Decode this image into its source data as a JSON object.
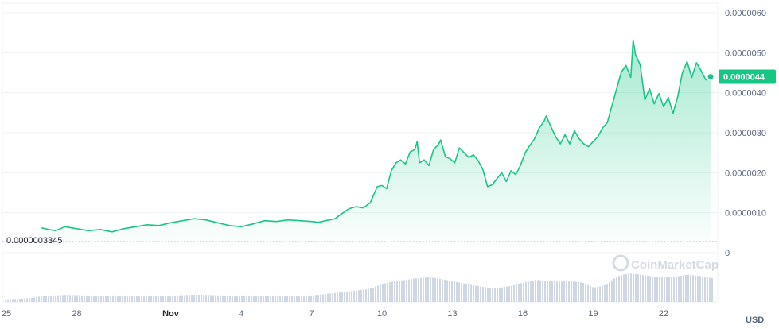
{
  "chart_data": {
    "type": "area",
    "currency_label": "USD",
    "watermark": "CoinMarketCap",
    "colors": {
      "line": "#16c784",
      "fill_top": "#16c784",
      "grid": "#eff2f5",
      "volume": "#cfd6e4",
      "tag": "#16c784"
    },
    "y_ticks": [
      "0",
      "0.0000010",
      "0.0000020",
      "0.0000030",
      "0.0000040",
      "0.0000050",
      "0.0000060"
    ],
    "ylim": [
      0,
      6e-06
    ],
    "x_ticks": [
      {
        "label": "25",
        "day": 25,
        "bold": false
      },
      {
        "label": "28",
        "day": 28,
        "bold": false
      },
      {
        "label": "Nov",
        "day": 32,
        "bold": true
      },
      {
        "label": "4",
        "day": 35,
        "bold": false
      },
      {
        "label": "7",
        "day": 38,
        "bold": false
      },
      {
        "label": "10",
        "day": 41,
        "bold": false
      },
      {
        "label": "13",
        "day": 44,
        "bold": false
      },
      {
        "label": "16",
        "day": 47,
        "bold": false
      },
      {
        "label": "19",
        "day": 50,
        "bold": false
      },
      {
        "label": "22",
        "day": 53,
        "bold": false
      }
    ],
    "xlim": [
      25,
      55
    ],
    "baseline_value": 3.345e-07,
    "baseline_label": "0.0000003345",
    "current_value": 4.4e-06,
    "current_label": "0.0000044",
    "price_series": [
      [
        26.5,
        6.2e-07
      ],
      [
        26.8,
        5.8e-07
      ],
      [
        27.1,
        5.5e-07
      ],
      [
        27.5,
        6.5e-07
      ],
      [
        28.0,
        6e-07
      ],
      [
        28.5,
        5.5e-07
      ],
      [
        29.0,
        5.8e-07
      ],
      [
        29.5,
        5.2e-07
      ],
      [
        30.0,
        6e-07
      ],
      [
        30.5,
        6.5e-07
      ],
      [
        31.0,
        7e-07
      ],
      [
        31.5,
        6.8e-07
      ],
      [
        32.0,
        7.5e-07
      ],
      [
        32.5,
        8e-07
      ],
      [
        33.0,
        8.5e-07
      ],
      [
        33.5,
        8.2e-07
      ],
      [
        34.0,
        7.5e-07
      ],
      [
        34.5,
        6.8e-07
      ],
      [
        35.0,
        6.5e-07
      ],
      [
        35.5,
        7.2e-07
      ],
      [
        36.0,
        8e-07
      ],
      [
        36.5,
        7.8e-07
      ],
      [
        37.0,
        8.2e-07
      ],
      [
        37.5,
        8e-07
      ],
      [
        38.0,
        7.8e-07
      ],
      [
        38.3,
        7.6e-07
      ],
      [
        38.6,
        8e-07
      ],
      [
        39.0,
        8.5e-07
      ],
      [
        39.3,
        9.8e-07
      ],
      [
        39.6,
        1.1e-06
      ],
      [
        39.9,
        1.15e-06
      ],
      [
        40.2,
        1.12e-06
      ],
      [
        40.5,
        1.25e-06
      ],
      [
        40.8,
        1.65e-06
      ],
      [
        41.0,
        1.68e-06
      ],
      [
        41.2,
        1.6e-06
      ],
      [
        41.4,
        2.05e-06
      ],
      [
        41.6,
        2.25e-06
      ],
      [
        41.8,
        2.32e-06
      ],
      [
        42.0,
        2.22e-06
      ],
      [
        42.2,
        2.52e-06
      ],
      [
        42.4,
        2.58e-06
      ],
      [
        42.5,
        2.78e-06
      ],
      [
        42.6,
        2.25e-06
      ],
      [
        42.8,
        2.32e-06
      ],
      [
        43.0,
        2.18e-06
      ],
      [
        43.2,
        2.58e-06
      ],
      [
        43.4,
        2.7e-06
      ],
      [
        43.5,
        2.82e-06
      ],
      [
        43.7,
        2.4e-06
      ],
      [
        43.9,
        2.35e-06
      ],
      [
        44.1,
        2.25e-06
      ],
      [
        44.3,
        2.62e-06
      ],
      [
        44.5,
        2.5e-06
      ],
      [
        44.7,
        2.38e-06
      ],
      [
        44.9,
        2.45e-06
      ],
      [
        45.1,
        2.3e-06
      ],
      [
        45.3,
        2.08e-06
      ],
      [
        45.5,
        1.65e-06
      ],
      [
        45.7,
        1.7e-06
      ],
      [
        45.9,
        1.85e-06
      ],
      [
        46.1,
        2e-06
      ],
      [
        46.3,
        1.78e-06
      ],
      [
        46.5,
        2.05e-06
      ],
      [
        46.7,
        1.95e-06
      ],
      [
        46.9,
        2.18e-06
      ],
      [
        47.1,
        2.5e-06
      ],
      [
        47.3,
        2.68e-06
      ],
      [
        47.5,
        2.85e-06
      ],
      [
        47.7,
        3.12e-06
      ],
      [
        47.9,
        3.28e-06
      ],
      [
        48.0,
        3.42e-06
      ],
      [
        48.2,
        3.15e-06
      ],
      [
        48.4,
        2.9e-06
      ],
      [
        48.6,
        2.72e-06
      ],
      [
        48.8,
        2.95e-06
      ],
      [
        49.0,
        2.72e-06
      ],
      [
        49.2,
        3.05e-06
      ],
      [
        49.4,
        2.85e-06
      ],
      [
        49.6,
        2.72e-06
      ],
      [
        49.8,
        2.65e-06
      ],
      [
        50.0,
        2.78e-06
      ],
      [
        50.2,
        2.9e-06
      ],
      [
        50.4,
        3.12e-06
      ],
      [
        50.6,
        3.25e-06
      ],
      [
        50.8,
        3.68e-06
      ],
      [
        51.0,
        4.1e-06
      ],
      [
        51.2,
        4.52e-06
      ],
      [
        51.4,
        4.68e-06
      ],
      [
        51.6,
        4.38e-06
      ],
      [
        51.7,
        5.32e-06
      ],
      [
        51.8,
        4.95e-06
      ],
      [
        52.0,
        4.7e-06
      ],
      [
        52.2,
        3.82e-06
      ],
      [
        52.4,
        4.1e-06
      ],
      [
        52.6,
        3.72e-06
      ],
      [
        52.8,
        3.98e-06
      ],
      [
        53.0,
        3.65e-06
      ],
      [
        53.2,
        3.88e-06
      ],
      [
        53.4,
        3.48e-06
      ],
      [
        53.6,
        3.9e-06
      ],
      [
        53.8,
        4.5e-06
      ],
      [
        54.0,
        4.78e-06
      ],
      [
        54.2,
        4.38e-06
      ],
      [
        54.4,
        4.75e-06
      ],
      [
        54.6,
        4.55e-06
      ],
      [
        54.8,
        4.32e-06
      ],
      [
        55.0,
        4.4e-06
      ]
    ],
    "volume_series": [
      [
        25.0,
        0.1
      ],
      [
        25.5,
        0.12
      ],
      [
        26.0,
        0.15
      ],
      [
        26.5,
        0.22
      ],
      [
        27.0,
        0.25
      ],
      [
        27.5,
        0.27
      ],
      [
        28.0,
        0.26
      ],
      [
        28.5,
        0.24
      ],
      [
        29.0,
        0.24
      ],
      [
        29.5,
        0.25
      ],
      [
        30.0,
        0.24
      ],
      [
        30.5,
        0.23
      ],
      [
        31.0,
        0.22
      ],
      [
        31.5,
        0.23
      ],
      [
        32.0,
        0.24
      ],
      [
        32.5,
        0.26
      ],
      [
        33.0,
        0.28
      ],
      [
        33.5,
        0.27
      ],
      [
        34.0,
        0.25
      ],
      [
        34.5,
        0.24
      ],
      [
        35.0,
        0.25
      ],
      [
        35.5,
        0.24
      ],
      [
        36.0,
        0.24
      ],
      [
        36.5,
        0.23
      ],
      [
        37.0,
        0.24
      ],
      [
        37.5,
        0.24
      ],
      [
        38.0,
        0.25
      ],
      [
        38.5,
        0.3
      ],
      [
        39.0,
        0.35
      ],
      [
        39.5,
        0.4
      ],
      [
        40.0,
        0.45
      ],
      [
        40.5,
        0.52
      ],
      [
        41.0,
        0.7
      ],
      [
        41.5,
        0.8
      ],
      [
        42.0,
        0.85
      ],
      [
        42.5,
        0.92
      ],
      [
        43.0,
        0.95
      ],
      [
        43.5,
        0.88
      ],
      [
        44.0,
        0.8
      ],
      [
        44.5,
        0.7
      ],
      [
        45.0,
        0.62
      ],
      [
        45.5,
        0.55
      ],
      [
        46.0,
        0.55
      ],
      [
        46.5,
        0.62
      ],
      [
        47.0,
        0.75
      ],
      [
        47.5,
        0.85
      ],
      [
        48.0,
        0.82
      ],
      [
        48.5,
        0.78
      ],
      [
        49.0,
        0.8
      ],
      [
        49.5,
        0.75
      ],
      [
        50.0,
        0.55
      ],
      [
        50.5,
        0.65
      ],
      [
        51.0,
        1.0
      ],
      [
        51.5,
        1.1
      ],
      [
        52.0,
        1.05
      ],
      [
        52.5,
        0.98
      ],
      [
        53.0,
        0.95
      ],
      [
        53.5,
        0.98
      ],
      [
        54.0,
        1.05
      ],
      [
        54.5,
        1.0
      ],
      [
        55.0,
        0.92
      ]
    ]
  }
}
